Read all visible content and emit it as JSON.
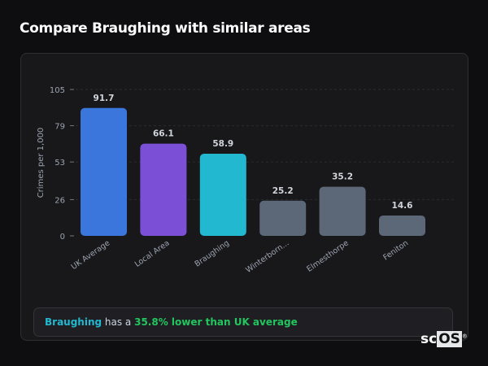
{
  "header": {
    "title": "Compare Braughing with similar areas"
  },
  "chart_data": {
    "type": "bar",
    "categories": [
      "UK Average",
      "Local Area",
      "Braughing",
      "Winterborn...",
      "Elmesthorpe",
      "Feniton"
    ],
    "values": [
      91.7,
      66.1,
      58.9,
      25.2,
      35.2,
      14.6
    ],
    "data_labels": [
      "91.7",
      "66.1",
      "58.9",
      "25.2",
      "35.2",
      "14.6"
    ],
    "colors": [
      "#3b76dc",
      "#7b4fd6",
      "#22b8cf",
      "#5c6778",
      "#5c6778",
      "#5c6778"
    ],
    "xlabel": "",
    "ylabel": "Crimes per 1,000",
    "ylim": [
      0,
      105
    ],
    "yticks": [
      0,
      26,
      53,
      79,
      105
    ],
    "grid": true,
    "legend": "none"
  },
  "summary": {
    "area": "Braughing",
    "middle": " has a ",
    "comparison": "35.8% lower than UK average"
  },
  "logo": {
    "text_a": "sc",
    "text_b": "OS",
    "mark": "®"
  }
}
